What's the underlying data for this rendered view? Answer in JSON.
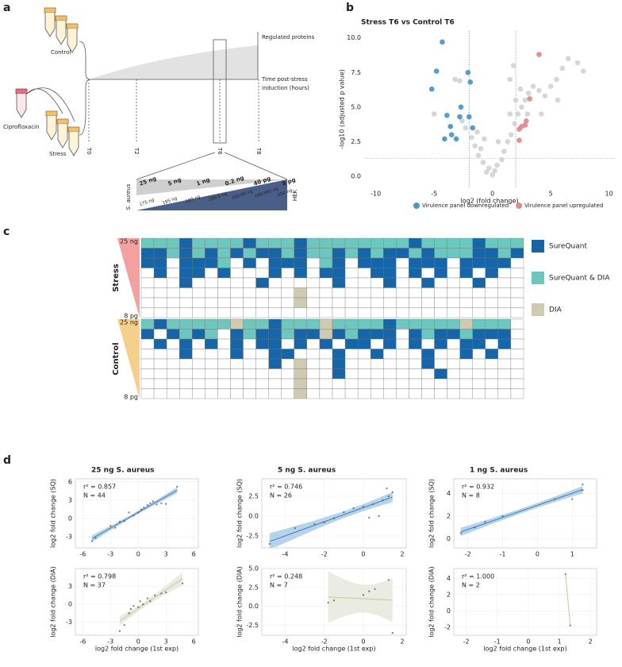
{
  "panel_labels": [
    "a",
    "b",
    "c",
    "d"
  ],
  "diagram": {
    "control": "Control",
    "ciprofloxacin": "Ciprofloxacin",
    "stress": "Stress",
    "regulated_proteins": "Regulated proteins",
    "time_axis": [
      "Time post-stress",
      "induction (hours)"
    ],
    "timepoints": [
      "T0",
      "T2",
      "T6",
      "T8"
    ],
    "s_aureus_amounts": [
      "25 ng",
      "5 ng",
      "1 ng",
      "0.2 ng",
      "40 pg",
      "8 pg"
    ],
    "hek_amounts": [
      "175 ng",
      "195 ng",
      "199 ng",
      "199.8 ng",
      "199.96 ng",
      "199.992 ng",
      "200 ng"
    ],
    "s_aureus": "S. aureus",
    "hek": "HEK"
  },
  "chart_data": [
    {
      "type": "scatter",
      "title": "Stress T6 vs Control T6",
      "xlabel": "log2 (fold change)",
      "ylabel": "-log10 (adjusted p value)",
      "xlim": [
        -11,
        10.5
      ],
      "xticks": [
        -10,
        -5,
        0,
        5,
        10
      ],
      "ylim": [
        -0.8,
        10.5
      ],
      "yticks": [
        {
          "value": 0,
          "label": "0.0"
        },
        2.5,
        {
          "value": 5,
          "label": "5.0"
        },
        7.5,
        {
          "value": 10,
          "label": "10.0"
        }
      ],
      "vlines": [
        -2,
        2
      ],
      "hlines": [
        1.3
      ],
      "series": [
        {
          "color": "#d4d4d4",
          "x": [
            -0.5,
            -0.3,
            0,
            0.2,
            0.4,
            -0.8,
            -1.2,
            -1.5,
            -1.8,
            -1.3,
            -2.3,
            -2.6,
            -1.0,
            0.8,
            1.0,
            1.3,
            1.6,
            1.9,
            2.2,
            2.5,
            2.8,
            3.1,
            3.5,
            4.0,
            4.5,
            5.0,
            5.5,
            6.0,
            6.5,
            7.3,
            7.8,
            1.5,
            2.0,
            2.4,
            1.8,
            1.5,
            -2.8,
            -5.0,
            -3.2,
            3.0,
            4.2,
            0.5,
            -0.7,
            5.6
          ],
          "values": [
            0.3,
            0.6,
            0.1,
            0.4,
            0.8,
            1.0,
            1.5,
            2.2,
            2.8,
            3.2,
            3.5,
            4.0,
            2.0,
            1.2,
            1.8,
            2.5,
            3.0,
            3.8,
            4.5,
            5.0,
            5.5,
            6.0,
            6.5,
            6.2,
            5.8,
            6.5,
            7.0,
            7.8,
            8.5,
            8.2,
            7.6,
            4.5,
            5.5,
            6.3,
            8.0,
            7.0,
            6.9,
            4.5,
            7.0,
            4.5,
            4.5,
            2.5,
            2.7,
            5.5
          ]
        },
        {
          "name": "Virulence panel downregulated",
          "color": "#4a9ac9",
          "x": [
            -4.3,
            -4.8,
            -2.1,
            -5.2,
            -1.9,
            -2.7,
            -3.9,
            -2.8,
            -2.0,
            -3.6,
            -1.7,
            -3.5,
            -4.1,
            -3.1
          ],
          "values": [
            9.7,
            7.6,
            7.5,
            6.3,
            6.8,
            5.0,
            4.4,
            4.3,
            4.3,
            3.6,
            3.5,
            3.0,
            2.7,
            2.7
          ]
        },
        {
          "name": "Virulence panel upregulated",
          "color": "#e08a8a",
          "x": [
            4.0,
            3.2,
            2.9,
            2.5,
            2.8,
            2.3,
            2.3
          ],
          "values": [
            8.8,
            5.6,
            4.0,
            3.6,
            3.7,
            3.4,
            2.6
          ]
        }
      ]
    },
    {
      "type": "heatmap",
      "empty_color": "#ffffff",
      "levels": [
        {
          "value": 1,
          "name": "SureQuant",
          "color": "#1565a8"
        },
        {
          "value": 2,
          "name": "SureQuant & DIA",
          "color": "#6cc8bf"
        },
        {
          "value": 3,
          "name": "DIA",
          "color": "#cfcbb0"
        }
      ],
      "groups": [
        {
          "name": "Stress",
          "top_label": "25 ng",
          "bottom_label": "8 pg",
          "color": "#f2a0a0",
          "rows": [
            [
              2,
              2,
              2,
              1,
              2,
              2,
              2,
              2,
              1,
              2,
              2,
              2,
              1,
              2,
              2,
              2,
              2,
              2,
              2,
              2,
              2,
              1,
              2,
              2,
              2,
              2,
              1,
              2,
              2,
              2
            ],
            [
              1,
              1,
              2,
              1,
              2,
              1,
              2,
              1,
              2,
              1,
              1,
              2,
              1,
              2,
              2,
              1,
              2,
              1,
              2,
              1,
              1,
              2,
              1,
              2,
              2,
              2,
              1,
              1,
              2,
              1
            ],
            [
              1,
              1,
              0,
              1,
              1,
              1,
              2,
              0,
              1,
              0,
              1,
              1,
              1,
              0,
              2,
              1,
              0,
              1,
              1,
              1,
              0,
              1,
              1,
              1,
              0,
              1,
              1,
              1,
              1,
              0
            ],
            [
              0,
              1,
              0,
              1,
              1,
              0,
              1,
              0,
              0,
              0,
              1,
              0,
              1,
              0,
              1,
              1,
              0,
              0,
              1,
              1,
              0,
              1,
              0,
              1,
              0,
              1,
              0,
              1,
              0,
              0
            ],
            [
              0,
              0,
              0,
              1,
              0,
              0,
              0,
              0,
              0,
              1,
              0,
              0,
              0,
              0,
              0,
              1,
              0,
              0,
              0,
              1,
              0,
              0,
              1,
              0,
              0,
              0,
              1,
              0,
              0,
              0
            ],
            [
              0,
              0,
              0,
              0,
              0,
              0,
              0,
              0,
              0,
              0,
              0,
              0,
              3,
              0,
              0,
              0,
              0,
              0,
              0,
              0,
              0,
              0,
              0,
              0,
              0,
              0,
              0,
              0,
              0,
              0
            ],
            [
              0,
              0,
              0,
              0,
              0,
              0,
              0,
              0,
              0,
              0,
              0,
              0,
              3,
              0,
              0,
              0,
              0,
              0,
              0,
              0,
              0,
              0,
              0,
              0,
              0,
              0,
              0,
              0,
              0,
              0
            ],
            [
              0,
              0,
              0,
              0,
              0,
              0,
              0,
              0,
              0,
              0,
              0,
              0,
              0,
              0,
              0,
              0,
              0,
              0,
              0,
              0,
              0,
              0,
              0,
              0,
              0,
              0,
              0,
              0,
              0,
              0
            ]
          ]
        },
        {
          "name": "Control",
          "top_label": "25 ng",
          "bottom_label": "8 pg",
          "color": "#f5d08a",
          "rows": [
            [
              2,
              1,
              2,
              2,
              2,
              2,
              2,
              3,
              2,
              2,
              1,
              2,
              2,
              2,
              3,
              2,
              2,
              2,
              2,
              1,
              2,
              2,
              2,
              2,
              2,
              3,
              2,
              2,
              2,
              0
            ],
            [
              1,
              0,
              1,
              2,
              1,
              2,
              0,
              1,
              2,
              1,
              1,
              2,
              1,
              1,
              3,
              1,
              2,
              1,
              1,
              1,
              0,
              1,
              2,
              1,
              1,
              2,
              1,
              1,
              1,
              0
            ],
            [
              0,
              1,
              0,
              1,
              0,
              1,
              0,
              1,
              0,
              1,
              1,
              0,
              1,
              0,
              1,
              0,
              1,
              1,
              0,
              1,
              0,
              1,
              0,
              1,
              0,
              1,
              1,
              0,
              1,
              0
            ],
            [
              0,
              0,
              0,
              1,
              0,
              0,
              0,
              1,
              0,
              0,
              1,
              1,
              0,
              0,
              0,
              1,
              0,
              0,
              1,
              0,
              0,
              0,
              1,
              0,
              0,
              1,
              0,
              1,
              0,
              0
            ],
            [
              0,
              0,
              0,
              0,
              0,
              0,
              0,
              0,
              0,
              0,
              1,
              0,
              3,
              0,
              0,
              1,
              0,
              0,
              0,
              0,
              0,
              0,
              1,
              0,
              0,
              0,
              0,
              0,
              0,
              0
            ],
            [
              0,
              0,
              0,
              0,
              0,
              0,
              0,
              0,
              0,
              0,
              0,
              0,
              3,
              0,
              0,
              1,
              0,
              0,
              0,
              0,
              0,
              0,
              0,
              1,
              0,
              0,
              0,
              0,
              0,
              0
            ],
            [
              0,
              0,
              0,
              0,
              0,
              0,
              0,
              0,
              0,
              0,
              0,
              0,
              3,
              0,
              0,
              0,
              0,
              0,
              0,
              0,
              0,
              0,
              0,
              0,
              0,
              0,
              0,
              0,
              0,
              0
            ],
            [
              0,
              0,
              0,
              0,
              0,
              0,
              0,
              0,
              0,
              0,
              0,
              0,
              3,
              0,
              0,
              0,
              0,
              0,
              0,
              0,
              0,
              0,
              0,
              0,
              0,
              0,
              0,
              0,
              0,
              0
            ]
          ]
        }
      ]
    },
    {
      "type": "scatter",
      "title": "25 ng S. aureus",
      "ylabel": "log2 fold change (SQ)",
      "annotations": [
        "r² = 0.857",
        "N = 44"
      ],
      "xlim": [
        -6.8,
        6.5
      ],
      "xticks": [
        -6,
        -3,
        0,
        3,
        6
      ],
      "ylim": [
        -4.8,
        6.5
      ],
      "yticks": [
        -3,
        0,
        3,
        6
      ],
      "fit": true,
      "band_color": "#a9cbe6",
      "line_color": "#3a7fbf",
      "series": [
        {
          "color": "#555555",
          "x": [
            -5,
            -4.6,
            -3,
            -2.5,
            -2,
            -1.5,
            -1,
            -0.5,
            0,
            0.3,
            0.6,
            1,
            1.3,
            1.6,
            2,
            2.5,
            3,
            4.2
          ],
          "values": [
            -3.7,
            -3.2,
            -1.2,
            -1.5,
            -0.5,
            -0.4,
            1.0,
            0.5,
            1.0,
            1.5,
            1.8,
            2.2,
            2.5,
            2.8,
            2.3,
            2.5,
            2.4,
            5.2
          ]
        }
      ]
    },
    {
      "type": "scatter",
      "ylabel": "log2 fold change (DIA)",
      "xlabel": "log2 fold change (1st exp)",
      "annotations": [
        "r² = 0.798",
        "N = 37"
      ],
      "xlim": [
        -6.8,
        6.5
      ],
      "xticks": [
        -6,
        -3,
        0,
        3,
        6
      ],
      "ylim": [
        -5.2,
        6
      ],
      "yticks": [
        -3,
        0,
        3
      ],
      "fit": true,
      "band_color": "#e6e7dc",
      "line_color": "#c9c79a",
      "series": [
        {
          "color": "#555555",
          "x": [
            -1.5,
            -1,
            -0.8,
            -0.5,
            0,
            0.2,
            0.5,
            1,
            1.3,
            1.8,
            2.5,
            3,
            -2,
            4.8
          ],
          "values": [
            -3.5,
            -1.5,
            -0.8,
            -0.3,
            -0.5,
            0.5,
            0,
            1,
            0.5,
            1.5,
            1.8,
            2.0,
            -4.5,
            3.5
          ]
        }
      ]
    },
    {
      "type": "scatter",
      "title": "5 ng S. aureus",
      "ylabel": "log2 fold change (SQ)",
      "annotations": [
        "r² = 0.746",
        "N = 26"
      ],
      "xlim": [
        -5.2,
        2.2
      ],
      "xticks": [
        -4,
        -2,
        0,
        2
      ],
      "ylim": [
        -4,
        4.7
      ],
      "yticks": [
        {
          "value": -2.5,
          "label": "-2.5"
        },
        {
          "value": 0,
          "label": "0.0"
        },
        {
          "value": 2.5,
          "label": "2.5"
        }
      ],
      "fit": true,
      "band_color": "#a9cbe6",
      "line_color": "#3a7fbf",
      "series": [
        {
          "color": "#555555",
          "x": [
            -4.8,
            -3.5,
            -2.5,
            -2,
            -1.5,
            -1,
            -0.5,
            0,
            0.3,
            0.5,
            1,
            1.2,
            1.5,
            1.3,
            0.8
          ],
          "values": [
            -3.5,
            -1.5,
            -1.0,
            -0.8,
            -0.3,
            0.5,
            1.0,
            1.2,
            -0.2,
            1.5,
            2.0,
            3.5,
            3.0,
            2.5,
            0.0
          ]
        }
      ]
    },
    {
      "type": "scatter",
      "ylabel": "log2 fold change (DIA)",
      "xlabel": "log2 fold change (1st exp)",
      "annotations": [
        "r² = 0.248",
        "N = 7"
      ],
      "xlim": [
        -5.2,
        2.2
      ],
      "xticks": [
        -4,
        -2,
        0,
        2
      ],
      "ylim": [
        -3.8,
        5
      ],
      "yticks": [
        {
          "value": -2.5,
          "label": "-2.5"
        },
        {
          "value": 0,
          "label": "0.0"
        },
        {
          "value": 2.5,
          "label": "2.5"
        },
        {
          "value": 5,
          "label": "5.0"
        }
      ],
      "fit": true,
      "band_color": "#e6e7dc",
      "line_color": "#c9c79a",
      "series": [
        {
          "color": "#555555",
          "x": [
            -1.8,
            -1.5,
            0,
            0.3,
            0.6,
            1.3,
            1.5
          ],
          "values": [
            0.5,
            0.8,
            1.5,
            2.0,
            2.3,
            3.5,
            -3.5
          ]
        }
      ]
    },
    {
      "type": "scatter",
      "title": "1 ng S. aureus",
      "ylabel": "log2 fold change (SQ)",
      "annotations": [
        "r² = 0.932",
        "N = 8"
      ],
      "xlim": [
        -2.4,
        1.7
      ],
      "xticks": [
        -2,
        -1,
        0,
        1
      ],
      "ylim": [
        -0.8,
        5.3
      ],
      "yticks": [
        0,
        2,
        4
      ],
      "fit": true,
      "band_color": "#a9cbe6",
      "line_color": "#3a7fbf",
      "series": [
        {
          "color": "#555555",
          "x": [
            -2.2,
            -1.8,
            -1.5,
            -1,
            0.5,
            1,
            1.3,
            1.3
          ],
          "values": [
            0.5,
            1.0,
            1.5,
            2.0,
            3.5,
            3.5,
            4.8,
            4.3
          ]
        }
      ]
    },
    {
      "type": "scatter",
      "ylabel": "log2 fold change (DIA)",
      "xlabel": "log2 fold change (1st exp)",
      "annotations": [
        "r² = 1.000",
        "N = 2"
      ],
      "xlim": [
        -2.4,
        2.2
      ],
      "xticks": [
        -2,
        -1,
        0,
        1,
        2
      ],
      "ylim": [
        -3,
        5.2
      ],
      "yticks": [
        -2,
        0,
        2,
        4
      ],
      "fit": true,
      "band_color": "#e6e7dc",
      "line_color": "#c9c79a",
      "series": [
        {
          "color": "#555555",
          "x": [
            1.2,
            1.35
          ],
          "values": [
            4.5,
            -1.8
          ]
        }
      ]
    }
  ]
}
